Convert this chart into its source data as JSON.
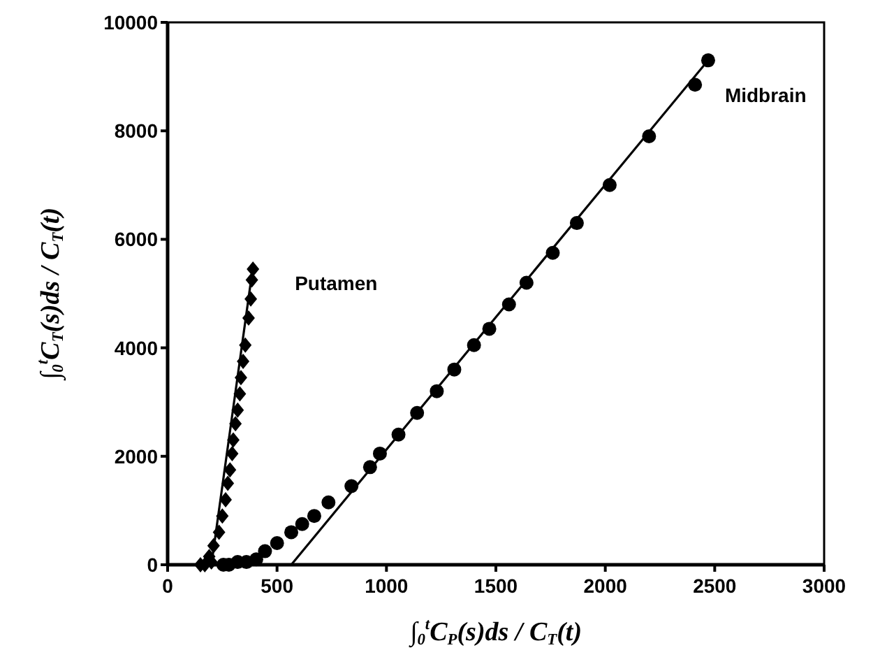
{
  "chart_data": {
    "type": "scatter",
    "xlabel": "∫$_{0}$$^{t}$C$_{P}$(s)ds / C$_{T}$(t)",
    "ylabel": "∫$_{0}$$^{t}$C$_{T}$(s)ds / C$_{T}$(t)",
    "xlim": [
      0,
      3000
    ],
    "xticks": [
      0,
      500,
      1000,
      1500,
      2000,
      2500,
      3000
    ],
    "ylim": [
      0,
      10000
    ],
    "yticks": [
      0,
      2000,
      4000,
      6000,
      8000,
      10000
    ],
    "grid": false,
    "series": [
      {
        "name": "Putamen",
        "marker": "diamond",
        "color": "#000000",
        "x": [
          150,
          170,
          190,
          200,
          210,
          235,
          250,
          265,
          275,
          285,
          295,
          300,
          310,
          320,
          330,
          335,
          345,
          355,
          370,
          380,
          385,
          390
        ],
        "values": [
          0,
          0,
          150,
          50,
          350,
          600,
          900,
          1200,
          1500,
          1750,
          2050,
          2300,
          2600,
          2850,
          3150,
          3450,
          3750,
          4050,
          4550,
          4900,
          5250,
          5450
        ]
      },
      {
        "type": "line",
        "marker": "none",
        "line_style": "solid",
        "color": "#000000",
        "x": [
          200,
          390
        ],
        "values": [
          0,
          5500
        ]
      },
      {
        "name": "Midbrain",
        "marker": "circle",
        "color": "#000000",
        "x": [
          255,
          280,
          320,
          360,
          405,
          445,
          500,
          565,
          615,
          670,
          735,
          840,
          925,
          970,
          1055,
          1140,
          1230,
          1310,
          1400,
          1470,
          1560,
          1640,
          1760,
          1870,
          2020,
          2200,
          2410,
          2470
        ],
        "values": [
          0,
          0,
          50,
          50,
          100,
          250,
          400,
          600,
          750,
          900,
          1150,
          1450,
          1800,
          2050,
          2400,
          2800,
          3200,
          3600,
          4050,
          4350,
          4800,
          5200,
          5750,
          6300,
          7000,
          7900,
          8850,
          9300
        ]
      },
      {
        "type": "line",
        "marker": "none",
        "line_style": "solid",
        "color": "#000000",
        "x": [
          565,
          2480
        ],
        "values": [
          0,
          9350
        ]
      }
    ]
  }
}
